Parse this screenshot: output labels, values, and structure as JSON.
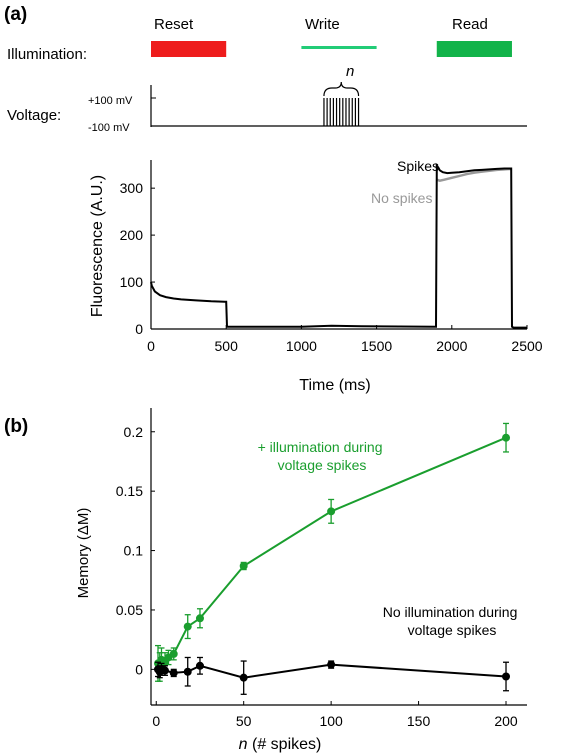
{
  "panel_a": {
    "label": "(a)",
    "illumination_label": "Illumination:",
    "voltage_label": "Voltage:",
    "voltage_high": "+100 mV",
    "voltage_low": "-100 mV",
    "spike_count_label": "n",
    "phases": [
      {
        "name": "Reset",
        "color": "#ee1c1c"
      },
      {
        "name": "Write",
        "color": "#22cc77"
      },
      {
        "name": "Read",
        "color": "#12b34a"
      }
    ]
  },
  "panel_b": {
    "label": "(b)"
  },
  "chart_data": [
    {
      "type": "line",
      "xlabel": "Time (ms)",
      "ylabel": "Fluorescence (A.U.)",
      "xlim": [
        0,
        2500
      ],
      "ylim": [
        0,
        360
      ],
      "xticks": [
        0,
        500,
        1000,
        1500,
        2000,
        2500
      ],
      "yticks": [
        0,
        100,
        200,
        300
      ],
      "illumination_phases": [
        {
          "name": "Reset",
          "start": 0,
          "end": 500
        },
        {
          "name": "Write",
          "start": 1000,
          "end": 1500
        },
        {
          "name": "Read",
          "start": 1900,
          "end": 2400
        }
      ],
      "voltage_spikes": {
        "start": 1150,
        "end": 1380,
        "count": 12
      },
      "series": [
        {
          "name": "Spikes",
          "color": "#000000",
          "x": [
            0,
            5,
            25,
            60,
            100,
            150,
            200,
            300,
            400,
            490,
            500,
            505,
            1000,
            1200,
            1400,
            1895,
            1900,
            1910,
            1920,
            1940,
            1970,
            2000,
            2050,
            2100,
            2150,
            2200,
            2250,
            2300,
            2350,
            2395,
            2400,
            2410,
            2450,
            2500
          ],
          "y": [
            100,
            92,
            80,
            72,
            68,
            65,
            63,
            61,
            59,
            58,
            58,
            5,
            5,
            7,
            6,
            5,
            348,
            344,
            338,
            334,
            332,
            333,
            334,
            336,
            338,
            339,
            340,
            341,
            342,
            342,
            5,
            3,
            3,
            3
          ]
        },
        {
          "name": "No spikes",
          "color": "#999999",
          "x": [
            1900,
            1920,
            1950,
            2000,
            2050,
            2100,
            2150,
            2200,
            2250,
            2300,
            2350,
            2400
          ],
          "y": [
            318,
            316,
            318,
            322,
            326,
            330,
            333,
            335,
            337,
            339,
            340,
            341
          ]
        }
      ]
    },
    {
      "type": "scatter",
      "xlabel_italic": "n",
      "xlabel": " (# spikes)",
      "ylabel": "Memory (ΔM)",
      "xlim": [
        -3,
        212
      ],
      "ylim": [
        -0.03,
        0.22
      ],
      "xticks": [
        0,
        50,
        100,
        150,
        200
      ],
      "yticks": [
        0,
        0.05,
        0.1,
        0.15,
        0.2
      ],
      "ytick_labels": [
        "0",
        "0.05",
        "0.1",
        "0.15",
        "0.2"
      ],
      "series": [
        {
          "name": "+ illumination during voltage spikes",
          "name_lines": [
            "+ illumination during",
            "voltage spikes"
          ],
          "color": "#1a9e2e",
          "x": [
            1,
            2,
            3,
            5,
            7,
            10,
            18,
            25,
            50,
            100,
            200
          ],
          "y": [
            0.005,
            0.002,
            0.008,
            0.006,
            0.01,
            0.013,
            0.036,
            0.043,
            0.087,
            0.133,
            0.195
          ],
          "err": [
            0.015,
            0.012,
            0.01,
            0.008,
            0.006,
            0.005,
            0.01,
            0.008,
            0.003,
            0.01,
            0.012
          ]
        },
        {
          "name": "No illumination during voltage spikes",
          "name_lines": [
            "No illumination during",
            "voltage spikes"
          ],
          "color": "#000000",
          "x": [
            1,
            2,
            3,
            5,
            10,
            18,
            25,
            50,
            100,
            200
          ],
          "y": [
            0.0,
            -0.002,
            0.0,
            -0.001,
            -0.003,
            -0.002,
            0.003,
            -0.007,
            0.004,
            -0.006
          ],
          "err": [
            0.006,
            0.005,
            0.005,
            0.004,
            0.003,
            0.012,
            0.007,
            0.014,
            0.003,
            0.012
          ]
        }
      ]
    }
  ]
}
